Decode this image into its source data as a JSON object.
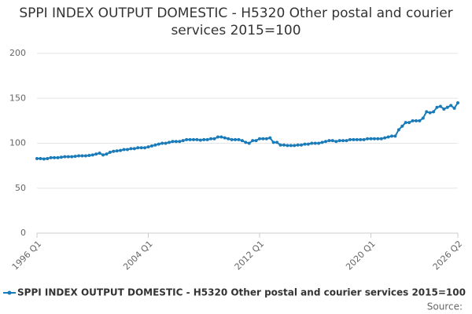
{
  "chart_data": {
    "type": "line",
    "title": "SPPI INDEX OUTPUT DOMESTIC - H5320 Other postal and courier services 2015=100",
    "categories": [
      "1996 Q1",
      null,
      null,
      null,
      null,
      null,
      null,
      null,
      null,
      null,
      null,
      null,
      null,
      null,
      null,
      null,
      null,
      null,
      null,
      null,
      null,
      null,
      null,
      null,
      null,
      null,
      null,
      null,
      null,
      null,
      null,
      null,
      "2004 Q1",
      null,
      null,
      null,
      null,
      null,
      null,
      null,
      null,
      null,
      null,
      null,
      null,
      null,
      null,
      null,
      null,
      null,
      null,
      null,
      null,
      null,
      null,
      null,
      null,
      null,
      null,
      null,
      null,
      null,
      null,
      null,
      "2012 Q1",
      null,
      null,
      null,
      null,
      null,
      null,
      null,
      null,
      null,
      null,
      null,
      null,
      null,
      null,
      null,
      null,
      null,
      null,
      null,
      null,
      null,
      null,
      null,
      null,
      null,
      null,
      null,
      null,
      null,
      null,
      null,
      "2020 Q1",
      null,
      null,
      null,
      null,
      null,
      null,
      null,
      null,
      null,
      null,
      null,
      null,
      null,
      null,
      null,
      null,
      null,
      null,
      null,
      null,
      null,
      null,
      null,
      null,
      "2026 Q2"
    ],
    "series": [
      {
        "name": "SPPI INDEX OUTPUT DOMESTIC - H5320 Other postal and courier services 2015=100",
        "color": "#1a7bb9",
        "values": [
          83,
          83,
          82.5,
          83,
          84,
          84,
          84,
          84.5,
          85,
          85,
          85,
          85.5,
          86,
          86,
          86,
          86.5,
          87,
          88,
          89,
          87,
          88,
          90,
          91,
          91.5,
          92,
          93,
          93,
          94,
          94,
          95,
          95,
          95,
          96,
          97,
          98,
          99,
          100,
          100,
          101,
          102,
          102,
          102,
          103,
          104,
          104,
          104,
          104,
          103.5,
          104,
          104,
          105,
          105,
          107,
          107,
          106,
          105,
          104,
          104,
          104,
          103,
          101,
          100,
          103,
          103,
          105,
          105,
          105,
          106,
          101,
          101,
          98,
          98,
          97.5,
          97.5,
          97.5,
          98,
          98,
          99,
          99,
          100,
          100,
          100,
          101,
          102,
          103,
          103,
          102,
          103,
          103,
          103,
          104,
          104,
          104,
          104,
          104,
          105,
          105,
          105,
          105,
          105,
          106,
          107,
          108,
          108,
          115,
          119,
          123,
          123,
          125,
          125,
          125,
          128,
          135,
          134,
          135,
          140,
          141,
          138,
          140,
          142,
          139,
          145
        ]
      }
    ],
    "ylim": [
      0,
      200
    ],
    "yticks": [
      0,
      50,
      100,
      150,
      200
    ],
    "grid": true,
    "legend": "bottom",
    "source": "Source:"
  }
}
